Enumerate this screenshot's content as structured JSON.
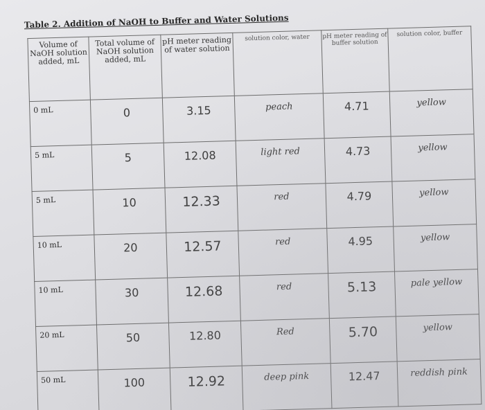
{
  "caption": "Table 2. Addition of NaOH to Buffer and Water Solutions",
  "headers": [
    "Volume of NaOH solution added, mL",
    "Total volume of NaOH solution added, mL",
    "pH meter reading of water solution",
    "solution color, water",
    "pH meter reading of buffer solution",
    "solution color, buffer"
  ],
  "rows": [
    {
      "vol": "0 mL",
      "total": "0",
      "ph_water": "3.15",
      "color_water": "peach",
      "ph_buffer": "4.71",
      "color_buffer": "yellow"
    },
    {
      "vol": "5 mL",
      "total": "5",
      "ph_water": "12.08",
      "color_water": "light red",
      "ph_buffer": "4.73",
      "color_buffer": "yellow"
    },
    {
      "vol": "5 mL",
      "total": "10",
      "ph_water": "12.33",
      "color_water": "red",
      "ph_buffer": "4.79",
      "color_buffer": "yellow"
    },
    {
      "vol": "10 mL",
      "total": "20",
      "ph_water": "12.57",
      "color_water": "red",
      "ph_buffer": "4.95",
      "color_buffer": "yellow"
    },
    {
      "vol": "10 mL",
      "total": "30",
      "ph_water": "12.68",
      "color_water": "red",
      "ph_buffer": "5.13",
      "color_buffer": "pale yellow"
    },
    {
      "vol": "20 mL",
      "total": "50",
      "ph_water": "12.80",
      "color_water": "Red",
      "ph_buffer": "5.70",
      "color_buffer": "yellow"
    },
    {
      "vol": "50 mL",
      "total": "100",
      "ph_water": "12.92",
      "color_water": "deep pink",
      "ph_buffer": "12.47",
      "color_buffer": "reddish pink"
    }
  ]
}
